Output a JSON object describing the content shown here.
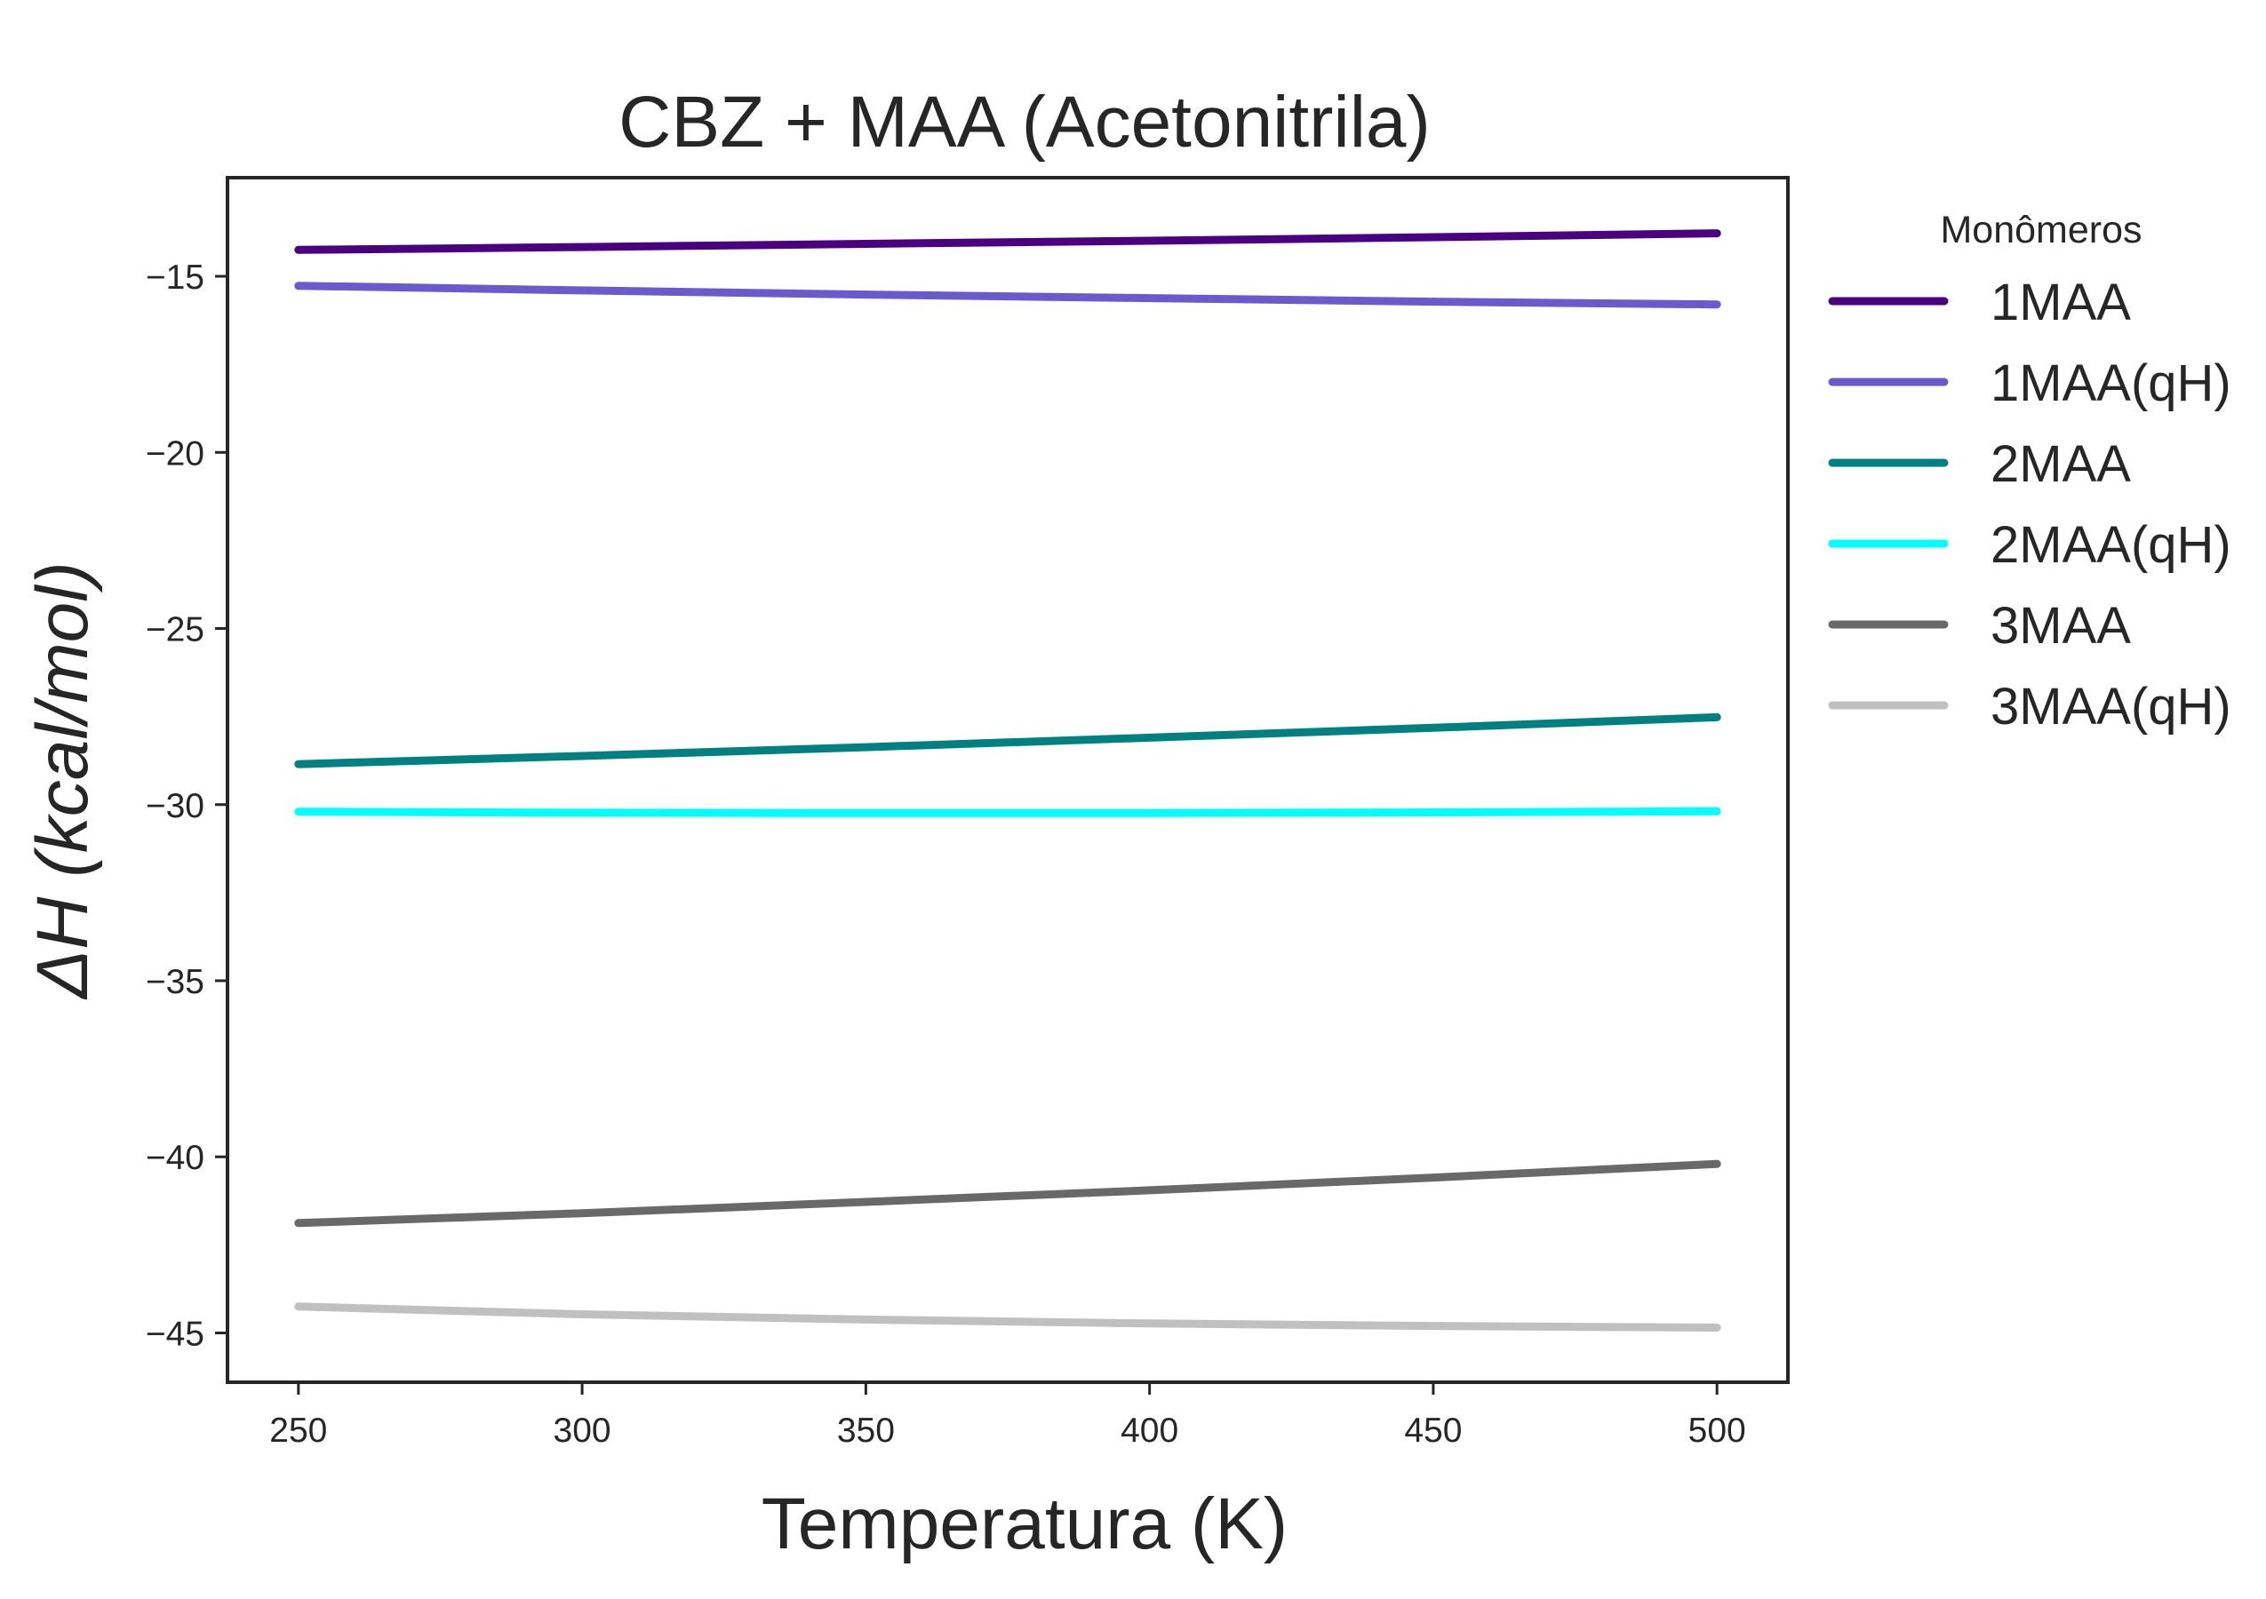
{
  "chart_data": {
    "type": "line",
    "title": "CBZ + MAA (Acetonitrila)",
    "xlabel": "Temperatura (K)",
    "ylabel_prefix": "ΔH",
    "ylabel_italic": "(kcal/mol)",
    "xlim": [
      237.5,
      512.5
    ],
    "ylim": [
      -46.4,
      -12.2
    ],
    "x_ticks": [
      250,
      300,
      350,
      400,
      450,
      500
    ],
    "x_tick_labels": [
      "250",
      "300",
      "350",
      "400",
      "450",
      "500"
    ],
    "y_ticks": [
      -15,
      -20,
      -25,
      -30,
      -35,
      -40,
      -45
    ],
    "y_tick_labels": [
      "−15",
      "−20",
      "−25",
      "−30",
      "−35",
      "−40",
      "−45"
    ],
    "grid": false,
    "legend": {
      "title": "Monômeros",
      "placement": "outside-right-top"
    },
    "x": [
      250,
      300,
      350,
      400,
      450,
      500
    ],
    "series": [
      {
        "name": "1MAA",
        "color": "#4B0082",
        "values": [
          -14.25,
          -14.17,
          -14.08,
          -13.99,
          -13.89,
          -13.78
        ]
      },
      {
        "name": "1MAA(qH)",
        "color": "#6A5ACD",
        "values": [
          -15.27,
          -15.4,
          -15.52,
          -15.62,
          -15.72,
          -15.8
        ]
      },
      {
        "name": "2MAA",
        "color": "#008080",
        "values": [
          -28.85,
          -28.62,
          -28.37,
          -28.1,
          -27.82,
          -27.52
        ]
      },
      {
        "name": "2MAA(qH)",
        "color": "#00FFFF",
        "values": [
          -30.2,
          -30.23,
          -30.24,
          -30.24,
          -30.22,
          -30.19
        ]
      },
      {
        "name": "3MAA",
        "color": "#696969",
        "values": [
          -41.88,
          -41.6,
          -41.28,
          -40.95,
          -40.59,
          -40.2
        ]
      },
      {
        "name": "3MAA(qH)",
        "color": "#C0C0C0",
        "values": [
          -44.25,
          -44.47,
          -44.62,
          -44.73,
          -44.8,
          -44.85
        ]
      }
    ]
  }
}
